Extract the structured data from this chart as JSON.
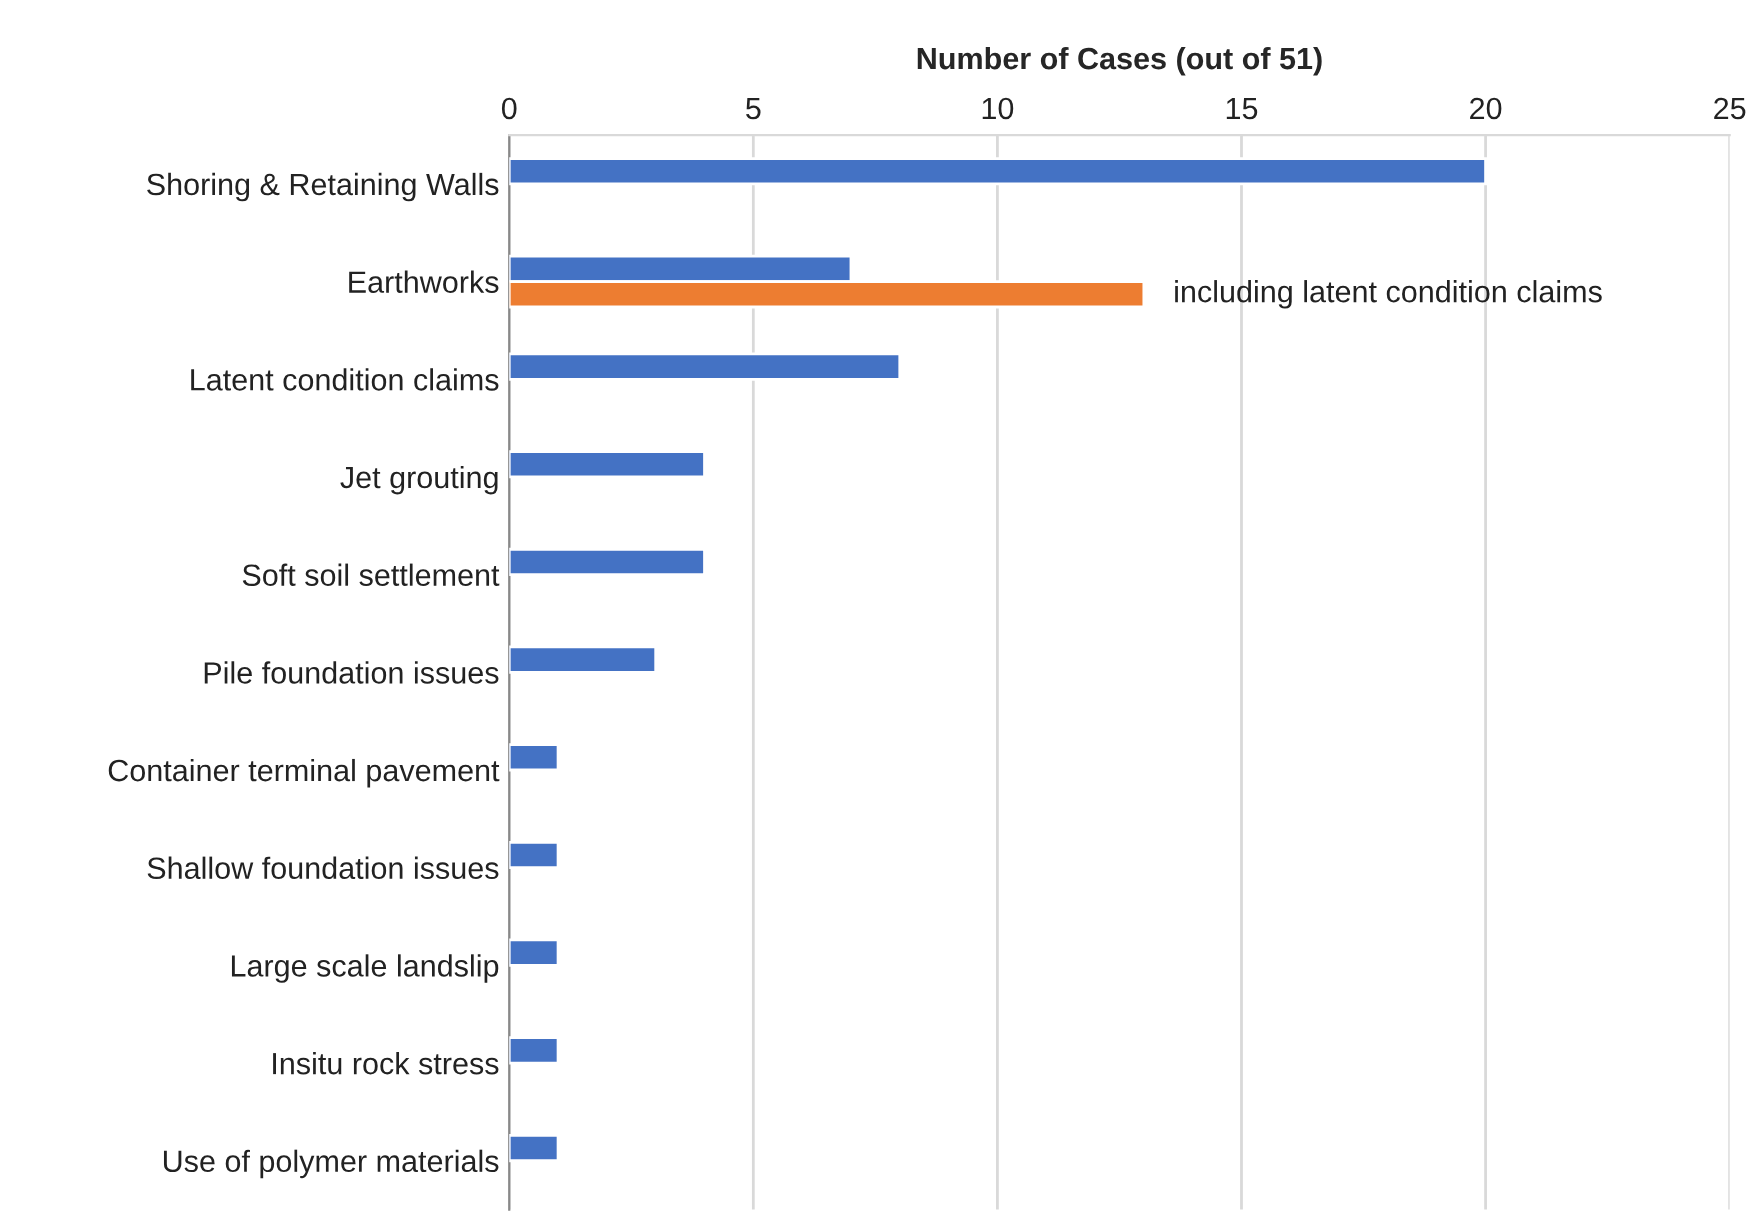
{
  "chart_data": {
    "type": "bar",
    "orientation": "horizontal",
    "xlabel": "Number of Cases (out of 51)",
    "categories": [
      "Shoring & Retaining Walls",
      "Earthworks",
      "Latent condition claims",
      "Jet grouting",
      "Soft soil settlement",
      "Pile foundation issues",
      "Container terminal pavement",
      "Shallow foundation issues",
      "Large scale landslip",
      "Insitu rock stress",
      "Use of polymer materials"
    ],
    "series": [
      {
        "color": "#4472c4",
        "values": [
          20,
          7,
          8,
          4,
          4,
          3,
          1,
          1,
          1,
          1,
          1
        ]
      },
      {
        "name": "including latent condition claims",
        "color": "#ed7d31",
        "values": [
          null,
          13,
          null,
          null,
          null,
          null,
          null,
          null,
          null,
          null,
          null
        ]
      }
    ],
    "xlim": [
      0,
      25
    ],
    "xticks": [
      0,
      5,
      10,
      15,
      20,
      25
    ],
    "grid": "x",
    "legend": false
  }
}
